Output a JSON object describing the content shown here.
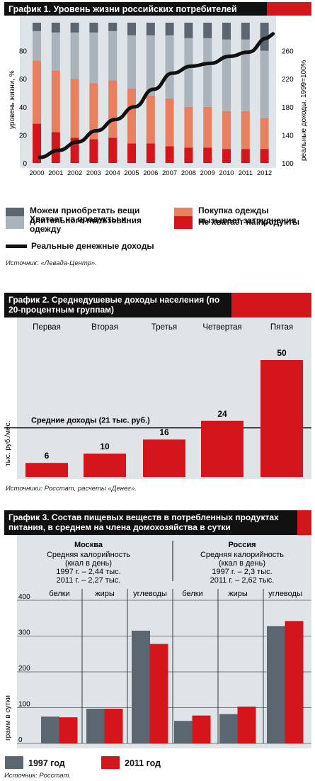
{
  "chart1": {
    "title": "График 1. Уровень жизни российских потребителей",
    "ylabel_left": "уровень жизни, %",
    "ylabel_right": "реальные доходы, 1999=100%",
    "legend": {
      "durables": "Можем приобретать вещи длительного пользования",
      "clothes_hard": "Покупка одежды вызывает затруднения",
      "food_clothes": "Хватает на продукты и одежду",
      "no_food": "Не хватает на продукты",
      "income": "Реальные денежные доходы"
    },
    "source": "Источник: «Левада-Центр».",
    "colors": {
      "durables": "#5b6670",
      "food_clothes": "#a9b3b9",
      "clothes_hard": "#e8805f",
      "no_food": "#d4151b",
      "income": "#111111"
    }
  },
  "chart2": {
    "title": "График 2. Среднедушевые доходы населения (по 20-процентным группам)",
    "ylabel": "тыс. руб./мес.",
    "avg_label": "Средние доходы (21 тыс. руб.)",
    "source": "Источники: Росстат, расчеты «Денег»."
  },
  "chart3": {
    "title": "График 3. Состав пищевых веществ в потребленных продуктах питания, в среднем на члена домохозяйства в сутки",
    "ylabel": "грамм в сутки",
    "moscow": {
      "name": "Москва",
      "line1": "Средняя калорийность",
      "line2": "(ккал в день)",
      "line3": "1997 г. – 2,44 тыс.",
      "line4": "2011 г. – 2,27 тыс."
    },
    "russia": {
      "name": "Россия",
      "line1": "Средняя калорийность",
      "line2": "(ккал в день)",
      "line3": "1997 г. – 2,3 тыс.",
      "line4": "2011 г. – 2,62 тыс."
    },
    "legend": {
      "y1997": "1997 год",
      "y2011": "2011 год"
    },
    "source": "Источник: Росстат."
  },
  "chart_data": [
    {
      "type": "bar",
      "title": "График 1. Уровень жизни российских потребителей",
      "categories": [
        "2000",
        "2001",
        "2002",
        "2003",
        "2004",
        "2005",
        "2006",
        "2007",
        "2008",
        "2009",
        "2010",
        "2011",
        "2012"
      ],
      "stacked": true,
      "ylim": [
        0,
        100
      ],
      "yticks": [
        0,
        20,
        40,
        60,
        80
      ],
      "series": [
        {
          "name": "Не хватает на продукты",
          "values": [
            28,
            22,
            18,
            17,
            18,
            14,
            14,
            12,
            11,
            11,
            10,
            10,
            10
          ]
        },
        {
          "name": "Покупка одежды вызывает затруднения",
          "values": [
            45,
            44,
            42,
            40,
            41,
            39,
            34,
            34,
            29,
            29,
            27,
            27,
            22
          ]
        },
        {
          "name": "Хватает на продукты и одежду",
          "values": [
            21,
            27,
            33,
            36,
            35,
            38,
            43,
            45,
            49,
            49,
            51,
            51,
            48
          ]
        },
        {
          "name": "Можем приобретать вещи длительного пользования",
          "values": [
            6,
            7,
            7,
            7,
            6,
            9,
            9,
            9,
            11,
            11,
            12,
            12,
            20
          ]
        }
      ],
      "secondary": {
        "name": "Реальные денежные доходы",
        "type": "line",
        "ylim": [
          100,
          300
        ],
        "yticks": [
          100,
          140,
          180,
          220,
          260
        ],
        "values": [
          108,
          118,
          130,
          146,
          162,
          180,
          205,
          228,
          238,
          242,
          252,
          258,
          278
        ]
      }
    },
    {
      "type": "bar",
      "title": "График 2. Среднедушевые доходы населения (по 20-процентным группам)",
      "categories": [
        "Первая",
        "Вторая",
        "Третья",
        "Четвертая",
        "Пятая"
      ],
      "values": [
        6,
        10,
        16,
        24,
        50
      ],
      "value_labels": [
        "6",
        "10",
        "16",
        "24",
        "50"
      ],
      "reference_line": 21,
      "ylim": [
        0,
        54
      ]
    },
    {
      "type": "bar",
      "title": "График 3. Состав пищевых веществ в потребленных продуктах питания, в среднем на члена домохозяйства в сутки",
      "groups": [
        "Москва",
        "Россия"
      ],
      "categories": [
        "белки",
        "жиры",
        "углеводы",
        "белки",
        "жиры",
        "углеводы"
      ],
      "ylim": [
        0,
        400
      ],
      "yticks": [
        0,
        100,
        200,
        300,
        400
      ],
      "series": [
        {
          "name": "1997 год",
          "values": [
            75,
            97,
            315,
            63,
            82,
            328
          ]
        },
        {
          "name": "2011 год",
          "values": [
            73,
            97,
            278,
            78,
            103,
            342
          ]
        }
      ]
    }
  ]
}
